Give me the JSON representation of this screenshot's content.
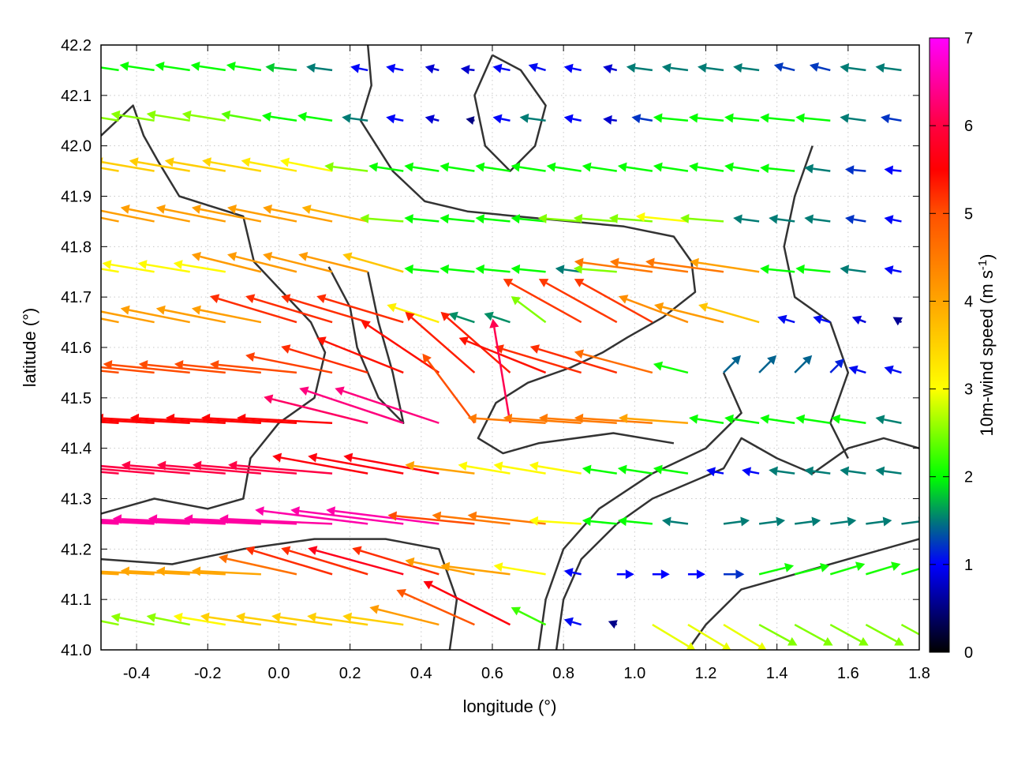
{
  "chart_data": {
    "type": "vector-field",
    "xlabel": "longitude (°)",
    "ylabel": "latitude (°)",
    "xlim": [
      -0.5,
      1.8
    ],
    "ylim": [
      41.0,
      42.2
    ],
    "xticks": [
      "-0.4",
      "-0.2",
      "0.0",
      "0.2",
      "0.4",
      "0.6",
      "0.8",
      "1.0",
      "1.2",
      "1.4",
      "1.6",
      "1.8"
    ],
    "yticks": [
      "41.0",
      "41.1",
      "41.2",
      "41.3",
      "41.4",
      "41.5",
      "41.6",
      "41.7",
      "41.8",
      "41.9",
      "42.0",
      "42.1",
      "42.2"
    ],
    "grid": true,
    "colorbar": {
      "label": "10m-wind speed (m s",
      "label_sup": "-1",
      "label_end": ")",
      "range": [
        0,
        7
      ],
      "ticks": [
        "0",
        "1",
        "2",
        "3",
        "4",
        "5",
        "6",
        "7"
      ],
      "stops": [
        [
          0,
          "#000000"
        ],
        [
          1,
          "#0000ff"
        ],
        [
          1.5,
          "#007878"
        ],
        [
          2,
          "#00ff00"
        ],
        [
          3,
          "#ffff00"
        ],
        [
          4,
          "#ffa500"
        ],
        [
          5,
          "#ff5000"
        ],
        [
          5.5,
          "#ff0000"
        ],
        [
          6,
          "#ff0040"
        ],
        [
          7,
          "#ff00ff"
        ]
      ]
    },
    "vectors": {
      "lon": [
        -0.45,
        -0.35,
        -0.25,
        -0.15,
        -0.05,
        0.05,
        0.15,
        0.25,
        0.35,
        0.45,
        0.55,
        0.65,
        0.75,
        0.85,
        0.95,
        1.05,
        1.15,
        1.25,
        1.35,
        1.45,
        1.55,
        1.65,
        1.75
      ],
      "lat": [
        42.15,
        42.05,
        41.95,
        41.85,
        41.75,
        41.65,
        41.55,
        41.45,
        41.35,
        41.25,
        41.15,
        41.05
      ],
      "u": [
        [
          -2,
          -2,
          -2,
          -2,
          -2,
          -1.8,
          -1.5,
          -1,
          -1,
          -0.8,
          -0.8,
          -1,
          -1,
          -1,
          -0.8,
          -1.5,
          -1.5,
          -1.5,
          -1.5,
          -1.2,
          -1.2,
          -1.5,
          -1.5
        ],
        [
          -2.5,
          -2.5,
          -2.5,
          -2.5,
          -2.3,
          -2,
          -2,
          -1.5,
          -1,
          -0.8,
          -0.5,
          -1,
          -1.5,
          -1,
          -0.8,
          -1.2,
          -2,
          -2,
          -2,
          -2,
          -2,
          -1.5,
          -1.2
        ],
        [
          -3.5,
          -3.5,
          -3.5,
          -3.5,
          -3.4,
          -3.2,
          -3,
          -2.5,
          -2,
          -2,
          -2,
          -2,
          -2,
          -2,
          -2,
          -2,
          -2,
          -2,
          -2,
          -2,
          -1.5,
          -1.2,
          -1
        ],
        [
          -4,
          -4,
          -4,
          -4,
          -4,
          -4,
          -4,
          -3.8,
          -2.5,
          -2,
          -2,
          -2,
          -2,
          -2.5,
          -2.5,
          -2.5,
          -3,
          -2.5,
          -1.5,
          -1.5,
          -1.5,
          -1.2,
          -1
        ],
        [
          -3,
          -3,
          -3,
          -3,
          -4,
          -4,
          -4,
          -4,
          -3.5,
          -2,
          -2,
          -2,
          -2,
          -1.5,
          -2.5,
          -4.5,
          -4.5,
          -4.5,
          -4,
          -2,
          -2,
          -1.5,
          -1
        ],
        [
          -4,
          -4,
          -4,
          -4,
          -4,
          -5,
          -5,
          -5,
          -5,
          -3,
          -1.5,
          -1.5,
          -2,
          -4.5,
          -4.5,
          -4.5,
          -4,
          -4,
          -3.5,
          -1,
          -1,
          -0.8,
          -0.5
        ],
        [
          -5,
          -5,
          -5,
          -5,
          -5,
          -5,
          -5,
          -5,
          -5,
          -4.5,
          -4,
          -4,
          -5,
          -5,
          -5,
          -4.5,
          -2,
          1,
          1,
          1,
          0.8,
          -1,
          -1
        ],
        [
          -5.5,
          -5.5,
          -5.5,
          -5.5,
          -5.5,
          -5.5,
          -5.5,
          -6,
          -6,
          -6,
          -3,
          -1,
          -4.5,
          -4.5,
          -4.5,
          -4.5,
          -4,
          -2,
          -2,
          -2,
          -2,
          -2,
          -1.5
        ],
        [
          -6,
          -6,
          -6,
          -6,
          -6,
          -6,
          -6,
          -5.5,
          -5.5,
          -5.5,
          -4,
          -3,
          -3,
          -3,
          -2,
          -2,
          -2,
          -1,
          -1,
          -1.5,
          -1.5,
          -1.5,
          -1.5
        ],
        [
          -6.5,
          -6.5,
          -6.5,
          -6.5,
          -6.5,
          -6.5,
          -6.5,
          -6.5,
          -6.5,
          -6.5,
          -5,
          -4.5,
          -4.5,
          -3,
          -2,
          -2,
          -1.5,
          1.5,
          1.5,
          1.5,
          1.5,
          1.5,
          1.5
        ],
        [
          -4,
          -4,
          -4,
          -4,
          -4,
          -4.5,
          -5,
          -5,
          -5.5,
          -5,
          -4,
          -4,
          -3,
          -1,
          1,
          1,
          1,
          1.2,
          2,
          2,
          2,
          2,
          2
        ],
        [
          -2.5,
          -2.5,
          -2.5,
          -3,
          -3.5,
          -3.5,
          -3.5,
          -3.5,
          -3.5,
          -4,
          -4.5,
          -5,
          -2,
          -1,
          -0.5,
          2.5,
          2.5,
          2.5,
          2.2,
          2.2,
          2.2,
          2.2,
          2.2
        ]
      ],
      "v": [
        [
          0.3,
          0.3,
          0.3,
          0.3,
          0.3,
          0.2,
          0.2,
          0.2,
          0.2,
          0.2,
          0.1,
          0.2,
          0.3,
          0.2,
          0.2,
          0.2,
          0.2,
          0.2,
          0.2,
          0.3,
          0.3,
          0.2,
          0.2
        ],
        [
          0.4,
          0.4,
          0.4,
          0.4,
          0.4,
          0.3,
          0.3,
          0.2,
          0.2,
          0.2,
          0.1,
          0.2,
          0.2,
          0.2,
          0.1,
          0.2,
          0.2,
          0.2,
          0.2,
          0.2,
          0.2,
          0.2,
          0.2
        ],
        [
          0.6,
          0.6,
          0.6,
          0.6,
          0.6,
          0.6,
          0.6,
          0.3,
          0.3,
          0.3,
          0.3,
          0.3,
          0.3,
          0.3,
          0.3,
          0.3,
          0.3,
          0.3,
          0.3,
          0.2,
          0.2,
          0.1,
          0.1
        ],
        [
          0.8,
          0.8,
          0.8,
          0.8,
          0.8,
          0.8,
          0.8,
          0.8,
          0.2,
          0.2,
          0.2,
          0.2,
          0.2,
          0.2,
          0.2,
          0.2,
          0.3,
          0.2,
          0.2,
          0.2,
          0.2,
          0.2,
          0.2
        ],
        [
          0.5,
          0.5,
          0.5,
          0.5,
          1,
          1,
          1,
          1,
          1,
          0.2,
          0.2,
          0.2,
          0.2,
          0.2,
          0.2,
          0.6,
          0.6,
          0.6,
          0.6,
          0.2,
          0.2,
          0.2,
          0.2
        ],
        [
          0.8,
          0.8,
          0.8,
          0.8,
          0.8,
          1.5,
          1.5,
          1.5,
          1.5,
          1,
          0.5,
          0.5,
          1.5,
          2.5,
          2.5,
          2.5,
          1.5,
          1,
          1,
          0.3,
          0.3,
          0.3,
          0.3
        ],
        [
          0.5,
          0.5,
          0.5,
          0.5,
          0.5,
          0.5,
          1,
          1.5,
          2,
          3,
          3.5,
          3.5,
          2,
          1.5,
          1.5,
          1.2,
          0.5,
          1,
          1,
          1,
          0.8,
          0.3,
          0.3
        ],
        [
          0.3,
          0.3,
          0.3,
          0.3,
          0.3,
          0.3,
          0.3,
          1.5,
          2,
          2,
          4,
          6,
          0.3,
          0.3,
          0.3,
          0.3,
          0.3,
          0.3,
          0.3,
          0.3,
          0.3,
          0.3,
          0.3
        ],
        [
          0.5,
          0.5,
          0.5,
          0.5,
          0.5,
          0.5,
          0.5,
          1,
          1,
          1,
          0.5,
          0.5,
          0.5,
          0.5,
          0.3,
          0.3,
          0.3,
          0.2,
          0.2,
          0.2,
          0.2,
          0.2,
          0.2
        ],
        [
          0.3,
          0.3,
          0.3,
          0.3,
          0.3,
          0.3,
          0.3,
          0.8,
          0.8,
          0.8,
          0.5,
          0.5,
          0.5,
          0.2,
          0.2,
          0.2,
          0.2,
          0.2,
          0.2,
          0.2,
          0.2,
          0.2,
          0.2
        ],
        [
          0.2,
          0.2,
          0.2,
          0.2,
          0.2,
          1,
          1.5,
          1.5,
          1.5,
          1.5,
          0.8,
          0.5,
          0.5,
          0.2,
          0,
          0,
          0,
          0,
          0.5,
          0.5,
          0.6,
          0.6,
          0.6
        ],
        [
          0.5,
          0.5,
          0.5,
          0.5,
          0.5,
          0.5,
          0.5,
          0.5,
          0.5,
          1,
          2,
          2.5,
          1,
          0.3,
          0.2,
          -1.5,
          -1.5,
          -1.5,
          -1.2,
          -1.2,
          -1.2,
          -1.2,
          -1.2
        ]
      ]
    },
    "contours": [
      [
        [
          0.25,
          42.2
        ],
        [
          0.26,
          42.12
        ],
        [
          0.23,
          42.05
        ],
        [
          0.32,
          41.95
        ],
        [
          0.41,
          41.89
        ],
        [
          0.53,
          41.87
        ],
        [
          0.67,
          41.86
        ],
        [
          0.82,
          41.85
        ],
        [
          0.97,
          41.84
        ],
        [
          1.11,
          41.82
        ],
        [
          1.16,
          41.77
        ],
        [
          1.17,
          41.71
        ],
        [
          1.08,
          41.66
        ],
        [
          0.98,
          41.62
        ],
        [
          0.91,
          41.59
        ],
        [
          0.82,
          41.56
        ],
        [
          0.7,
          41.53
        ],
        [
          0.61,
          41.49
        ],
        [
          0.56,
          41.42
        ],
        [
          0.63,
          41.39
        ],
        [
          0.73,
          41.41
        ],
        [
          0.94,
          41.43
        ],
        [
          1.11,
          41.41
        ]
      ],
      [
        [
          -0.5,
          42.02
        ],
        [
          -0.41,
          42.08
        ],
        [
          -0.38,
          42.02
        ],
        [
          -0.34,
          41.97
        ],
        [
          -0.28,
          41.9
        ],
        [
          -0.19,
          41.88
        ],
        [
          -0.1,
          41.86
        ],
        [
          -0.07,
          41.77
        ],
        [
          0.01,
          41.71
        ],
        [
          0.09,
          41.65
        ],
        [
          0.13,
          41.59
        ],
        [
          0.1,
          41.5
        ],
        [
          0.0,
          41.45
        ],
        [
          -0.08,
          41.38
        ],
        [
          -0.1,
          41.3
        ],
        [
          -0.2,
          41.28
        ],
        [
          -0.35,
          41.3
        ],
        [
          -0.5,
          41.27
        ]
      ],
      [
        [
          0.78,
          41.0
        ],
        [
          0.8,
          41.1
        ],
        [
          0.85,
          41.18
        ],
        [
          0.95,
          41.25
        ],
        [
          1.05,
          41.3
        ],
        [
          1.15,
          41.33
        ],
        [
          1.25,
          41.36
        ],
        [
          1.3,
          41.42
        ],
        [
          1.4,
          41.38
        ],
        [
          1.5,
          41.35
        ],
        [
          1.6,
          41.4
        ],
        [
          1.7,
          41.42
        ],
        [
          1.8,
          41.4
        ]
      ],
      [
        [
          0.73,
          41.0
        ],
        [
          0.75,
          41.1
        ],
        [
          0.8,
          41.2
        ],
        [
          0.9,
          41.28
        ],
        [
          1.05,
          41.35
        ],
        [
          1.2,
          41.4
        ],
        [
          1.3,
          41.47
        ],
        [
          1.25,
          41.55
        ]
      ],
      [
        [
          1.15,
          41.0
        ],
        [
          1.2,
          41.05
        ],
        [
          1.3,
          41.12
        ],
        [
          1.45,
          41.15
        ],
        [
          1.6,
          41.18
        ],
        [
          1.7,
          41.2
        ],
        [
          1.8,
          41.22
        ]
      ],
      [
        [
          1.5,
          42.0
        ],
        [
          1.45,
          41.9
        ],
        [
          1.42,
          41.8
        ],
        [
          1.45,
          41.7
        ],
        [
          1.55,
          41.65
        ],
        [
          1.6,
          41.55
        ],
        [
          1.55,
          41.45
        ],
        [
          1.6,
          41.38
        ]
      ],
      [
        [
          0.6,
          42.18
        ],
        [
          0.68,
          42.15
        ],
        [
          0.75,
          42.08
        ],
        [
          0.72,
          42.0
        ],
        [
          0.65,
          41.95
        ],
        [
          0.58,
          42.0
        ],
        [
          0.55,
          42.1
        ],
        [
          0.6,
          42.18
        ]
      ],
      [
        [
          -0.5,
          41.18
        ],
        [
          -0.3,
          41.17
        ],
        [
          -0.1,
          41.2
        ],
        [
          0.1,
          41.22
        ],
        [
          0.3,
          41.22
        ],
        [
          0.45,
          41.2
        ],
        [
          0.5,
          41.1
        ],
        [
          0.48,
          41.0
        ]
      ],
      [
        [
          0.14,
          41.76
        ],
        [
          0.2,
          41.68
        ],
        [
          0.22,
          41.6
        ],
        [
          0.28,
          41.5
        ],
        [
          0.35,
          41.45
        ],
        [
          0.32,
          41.55
        ],
        [
          0.28,
          41.65
        ],
        [
          0.25,
          41.75
        ]
      ]
    ],
    "contour_color": "#333333"
  }
}
